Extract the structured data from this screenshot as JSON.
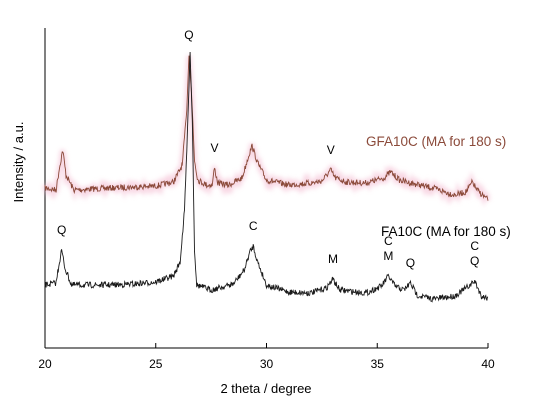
{
  "chart_data": {
    "type": "line",
    "xlabel": "2 theta / degree",
    "ylabel": "Intensity / a.u.",
    "xlim": [
      20,
      40
    ],
    "x_ticks": [
      20,
      25,
      30,
      35,
      40
    ],
    "y_ticks_shown": false,
    "grid": false,
    "series": [
      {
        "name": "GFA10C (MA for 180 s)",
        "color": "#8b4a3a",
        "glow_color": "#f3b8cf",
        "points": [
          [
            20.0,
            188
          ],
          [
            20.5,
            190
          ],
          [
            20.65,
            168
          ],
          [
            20.8,
            150
          ],
          [
            20.95,
            175
          ],
          [
            21.3,
            190
          ],
          [
            22.0,
            189
          ],
          [
            23.0,
            188
          ],
          [
            24.0,
            187
          ],
          [
            25.0,
            186
          ],
          [
            25.8,
            182
          ],
          [
            26.2,
            165
          ],
          [
            26.4,
            110
          ],
          [
            26.5,
            55
          ],
          [
            26.62,
            95
          ],
          [
            26.75,
            160
          ],
          [
            26.9,
            180
          ],
          [
            27.3,
            185
          ],
          [
            27.55,
            185
          ],
          [
            27.65,
            168
          ],
          [
            27.8,
            183
          ],
          [
            28.3,
            185
          ],
          [
            28.9,
            178
          ],
          [
            29.2,
            155
          ],
          [
            29.35,
            146
          ],
          [
            29.6,
            163
          ],
          [
            30.0,
            180
          ],
          [
            31.0,
            185
          ],
          [
            32.0,
            183
          ],
          [
            32.5,
            181
          ],
          [
            32.9,
            170
          ],
          [
            33.1,
            178
          ],
          [
            33.6,
            182
          ],
          [
            34.5,
            183
          ],
          [
            35.3,
            178
          ],
          [
            35.6,
            172
          ],
          [
            36.0,
            180
          ],
          [
            36.5,
            183
          ],
          [
            37.5,
            188
          ],
          [
            38.5,
            195
          ],
          [
            39.0,
            192
          ],
          [
            39.3,
            182
          ],
          [
            39.5,
            190
          ],
          [
            40.0,
            200
          ]
        ],
        "label": "GFA10C (MA for 180 s)"
      },
      {
        "name": "FA10C (MA for 180 s)",
        "color": "#1a1a1a",
        "points": [
          [
            20.0,
            285
          ],
          [
            20.5,
            283
          ],
          [
            20.65,
            262
          ],
          [
            20.75,
            250
          ],
          [
            20.9,
            268
          ],
          [
            21.2,
            285
          ],
          [
            22.0,
            285
          ],
          [
            23.0,
            285
          ],
          [
            24.0,
            284
          ],
          [
            25.0,
            282
          ],
          [
            25.8,
            276
          ],
          [
            26.1,
            262
          ],
          [
            26.3,
            210
          ],
          [
            26.45,
            120
          ],
          [
            26.55,
            52
          ],
          [
            26.65,
            120
          ],
          [
            26.75,
            250
          ],
          [
            26.85,
            285
          ],
          [
            27.5,
            290
          ],
          [
            28.5,
            284
          ],
          [
            29.0,
            270
          ],
          [
            29.25,
            252
          ],
          [
            29.4,
            246
          ],
          [
            29.6,
            262
          ],
          [
            30.0,
            285
          ],
          [
            31.0,
            292
          ],
          [
            32.0,
            293
          ],
          [
            32.7,
            288
          ],
          [
            33.0,
            279
          ],
          [
            33.3,
            290
          ],
          [
            34.5,
            293
          ],
          [
            35.2,
            286
          ],
          [
            35.5,
            276
          ],
          [
            35.8,
            286
          ],
          [
            36.2,
            290
          ],
          [
            36.5,
            283
          ],
          [
            36.8,
            295
          ],
          [
            37.5,
            299
          ],
          [
            38.5,
            296
          ],
          [
            39.2,
            285
          ],
          [
            39.4,
            281
          ],
          [
            39.7,
            296
          ],
          [
            40.0,
            298
          ]
        ],
        "label": "FA10C (MA for 180 s)"
      }
    ],
    "annotations": [
      {
        "text": "Q",
        "x": 26.5,
        "series": "top"
      },
      {
        "text": "V",
        "x": 27.65,
        "series": "GFA10C"
      },
      {
        "text": "V",
        "x": 32.9,
        "series": "GFA10C"
      },
      {
        "text": "Q",
        "x": 20.75,
        "series": "FA10C"
      },
      {
        "text": "C",
        "x": 29.4,
        "series": "FA10C"
      },
      {
        "text": "M",
        "x": 33.0,
        "series": "FA10C"
      },
      {
        "text": "C",
        "x": 35.5,
        "series": "FA10C"
      },
      {
        "text": "M",
        "x": 35.5,
        "series": "FA10C"
      },
      {
        "text": "Q",
        "x": 36.5,
        "series": "FA10C"
      },
      {
        "text": "C",
        "x": 39.4,
        "series": "FA10C"
      },
      {
        "text": "Q",
        "x": 39.4,
        "series": "FA10C"
      }
    ]
  }
}
